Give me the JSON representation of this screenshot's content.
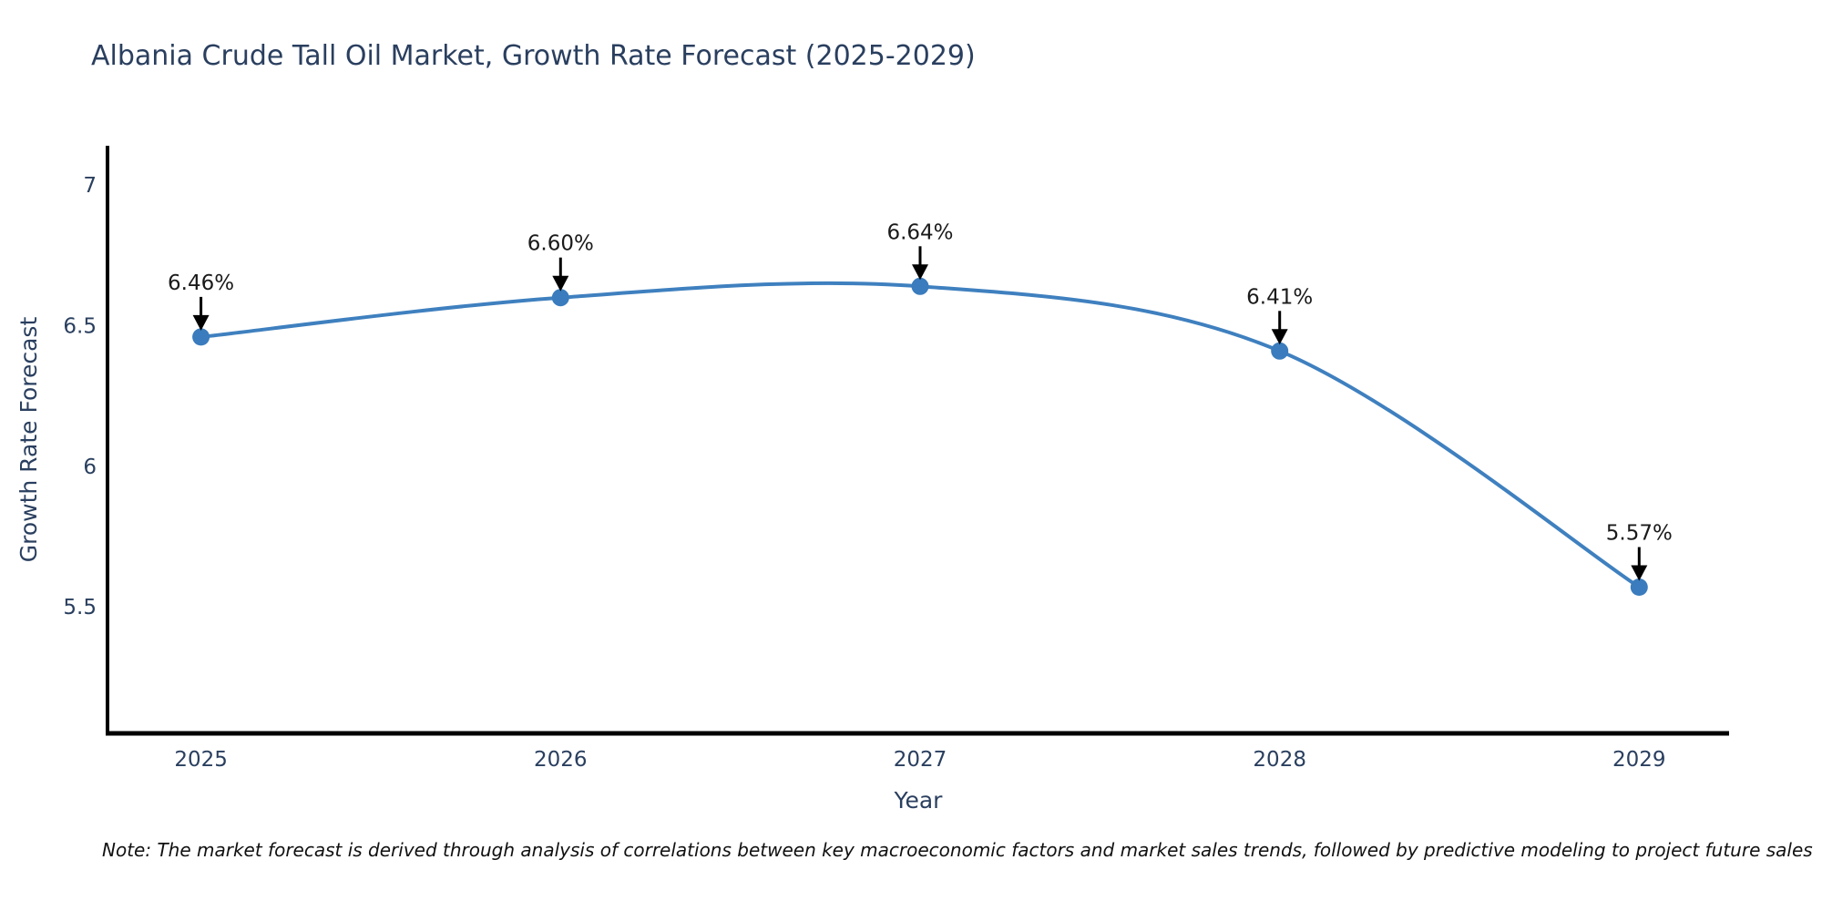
{
  "page": {
    "note": "Note: The market forecast is derived through analysis of correlations between key macroeconomic factors and market sales trends, followed by predictive modeling to project future sales"
  },
  "chart_data": {
    "type": "line",
    "title": "Albania Crude Tall Oil Market, Growth Rate Forecast (2025-2029)",
    "xlabel": "Year",
    "ylabel": "Growth Rate Forecast",
    "x": [
      2025,
      2026,
      2027,
      2028,
      2029
    ],
    "series": [
      {
        "name": "Growth Rate Forecast",
        "values": [
          6.46,
          6.6,
          6.64,
          6.41,
          5.57
        ],
        "point_labels": [
          "6.46%",
          "6.60%",
          "6.64%",
          "6.41%",
          "5.57%"
        ]
      }
    ],
    "line_shape": "spline",
    "markers": true,
    "grid": false,
    "legend": "none",
    "xticks": [
      "2025",
      "2026",
      "2027",
      "2028",
      "2029"
    ],
    "yticks": [
      5.5,
      6,
      6.5,
      7
    ],
    "ytick_labels": [
      "5.5",
      "6",
      "6.5",
      "7"
    ],
    "xlim": [
      2024.74,
      2029.25
    ],
    "ylim": [
      5.05,
      7.14
    ],
    "colors": {
      "line": "#3f80bf",
      "marker": "#3a7cbd",
      "axis": "#000000",
      "tick_text": "#2a3f5f",
      "title_text": "#2a3f5f",
      "annotation_text": "#1a1a1a",
      "annotation_arrow": "#000000",
      "background": "#ffffff"
    }
  }
}
